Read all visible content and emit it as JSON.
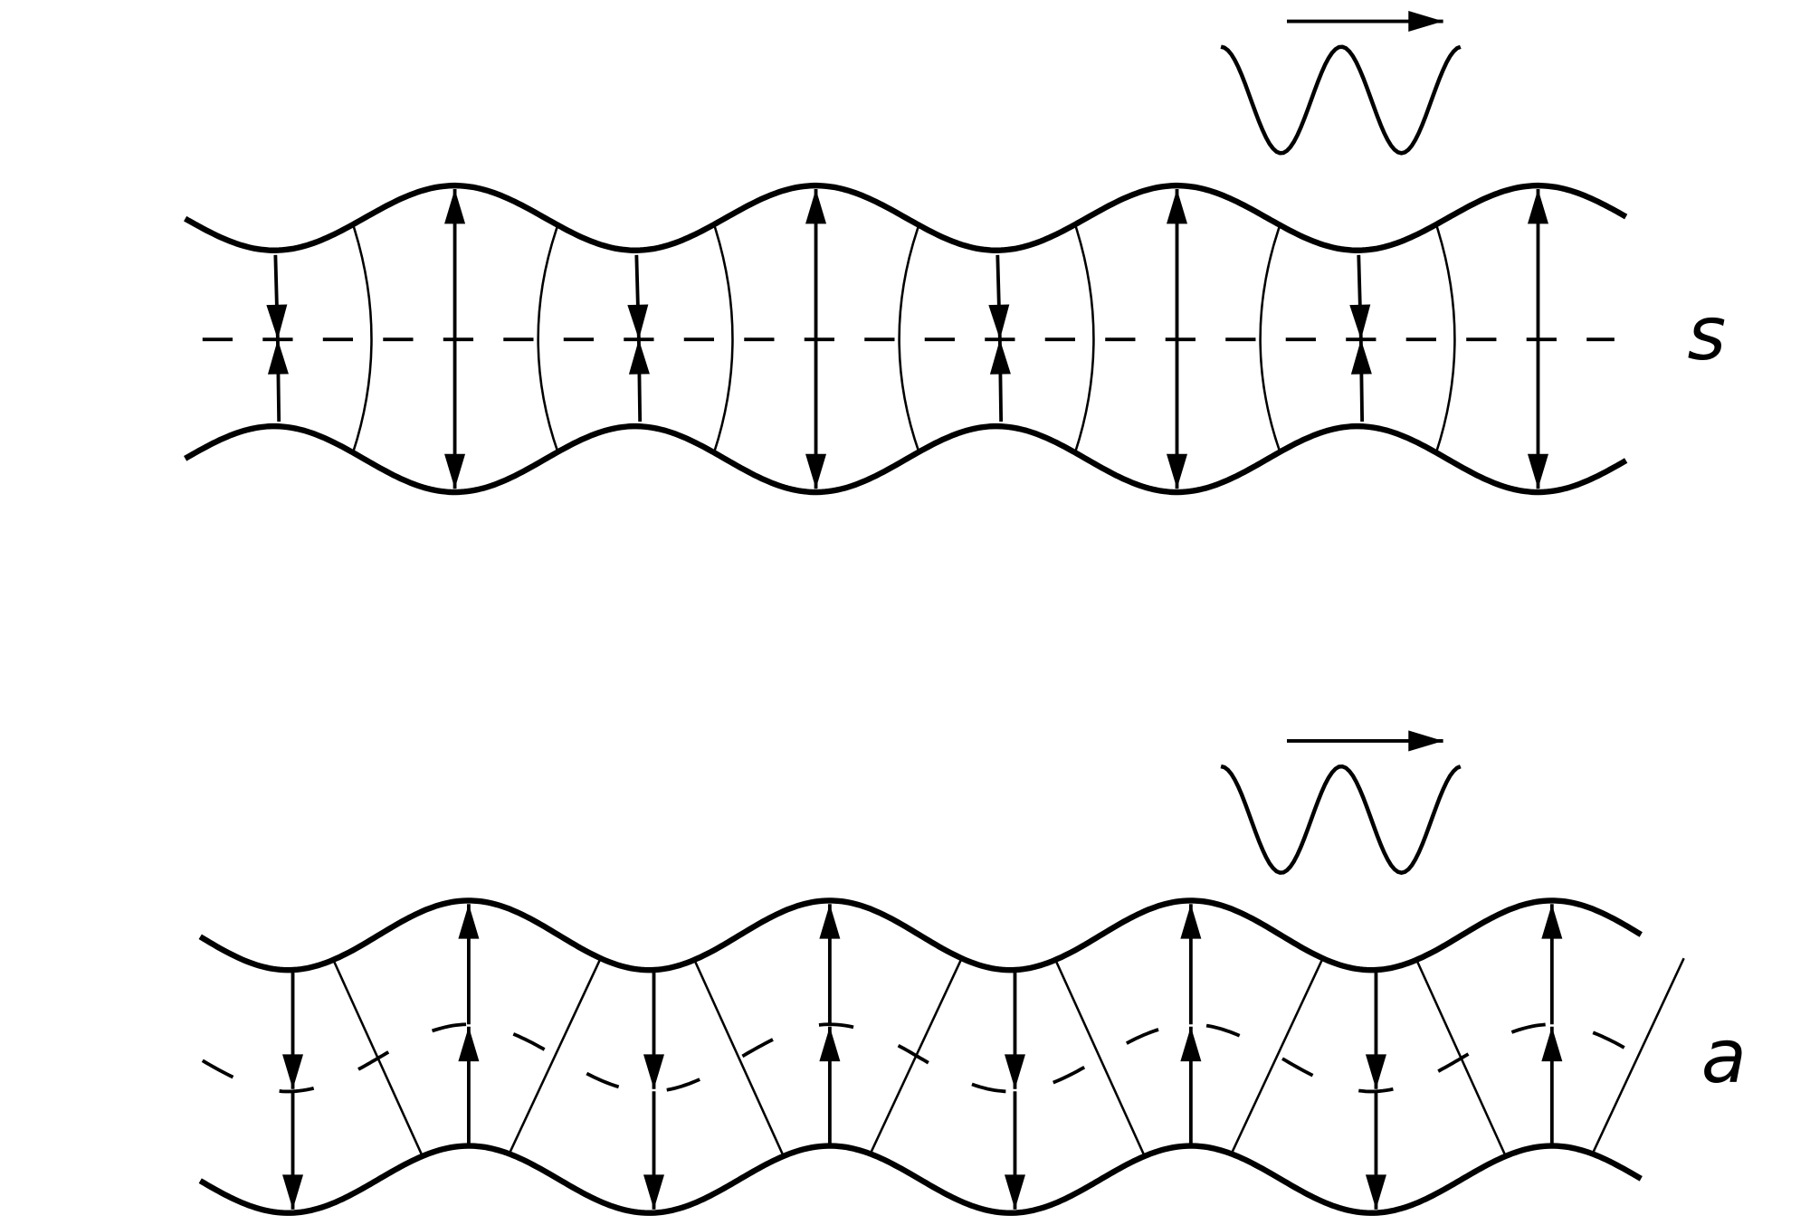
{
  "labels": {
    "s": "s",
    "a": "a"
  }
}
